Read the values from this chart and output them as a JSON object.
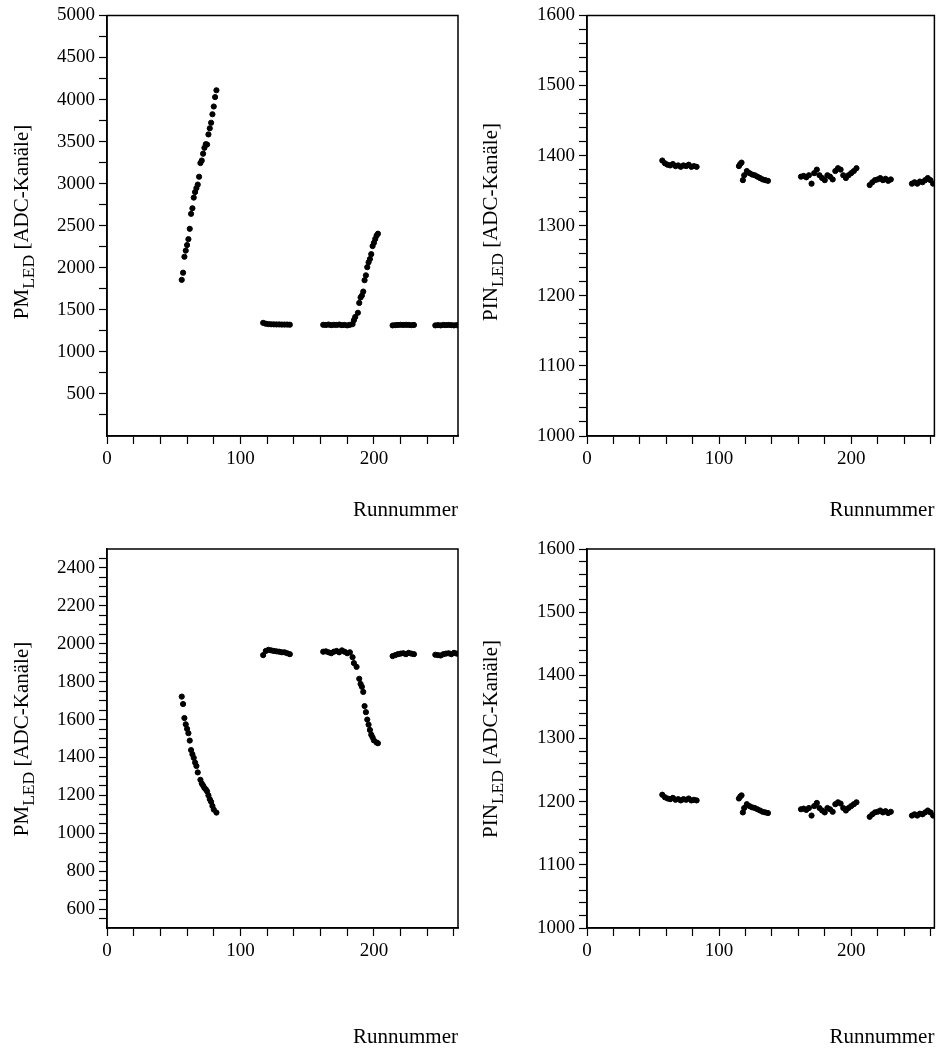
{
  "chart_data": [
    {
      "type": "scatter",
      "xlabel": "Runnummer",
      "ylabel": "PM$_{LED}$ [ADC-Kanäle]",
      "marker": "circle",
      "xlim": [
        0,
        263
      ],
      "ylim": [
        0,
        5000
      ],
      "xticks": [
        0,
        {
          "value": 20,
          "label": null
        },
        {
          "value": 40,
          "label": null
        },
        {
          "value": 60,
          "label": null
        },
        {
          "value": 80,
          "label": null
        },
        100,
        {
          "value": 120,
          "label": null
        },
        {
          "value": 140,
          "label": null
        },
        {
          "value": 160,
          "label": null
        },
        {
          "value": 180,
          "label": null
        },
        200,
        {
          "value": 220,
          "label": null
        },
        {
          "value": 240,
          "label": null
        },
        {
          "value": 260,
          "label": null
        }
      ],
      "yticks": [
        {
          "value": 250,
          "label": null
        },
        500,
        {
          "value": 750,
          "label": null
        },
        1000,
        {
          "value": 1250,
          "label": null
        },
        1500,
        {
          "value": 1750,
          "label": null
        },
        2000,
        {
          "value": 2250,
          "label": null
        },
        2500,
        {
          "value": 2750,
          "label": null
        },
        3000,
        {
          "value": 3250,
          "label": null
        },
        3500,
        {
          "value": 3750,
          "label": null
        },
        4000,
        {
          "value": 4250,
          "label": null
        },
        4500,
        {
          "value": 4750,
          "label": null
        },
        5000
      ],
      "series": [
        {
          "color": "#000000",
          "x": [
            56,
            57,
            58,
            59,
            60,
            61,
            62,
            63,
            64,
            65,
            66,
            67,
            68,
            69,
            70,
            71,
            72,
            73,
            74,
            75,
            76,
            77,
            78,
            79,
            80,
            81,
            82,
            117,
            119,
            121,
            123,
            125,
            127,
            129,
            131,
            133,
            135,
            137,
            162,
            164,
            166,
            168,
            170,
            172,
            174,
            176,
            178,
            180,
            182,
            184,
            185,
            186,
            188,
            189,
            190,
            191,
            192,
            193,
            194,
            195,
            196,
            197,
            198,
            199,
            200,
            201,
            202,
            203,
            214,
            216,
            218,
            220,
            222,
            224,
            226,
            228,
            230,
            246,
            248,
            250,
            252,
            254,
            256,
            258,
            260,
            262
          ],
          "values": [
            1856,
            1941,
            2131,
            2204,
            2270,
            2340,
            2463,
            2641,
            2707,
            2834,
            2900,
            2947,
            2989,
            3082,
            3245,
            3275,
            3356,
            3426,
            3469,
            3465,
            3585,
            3658,
            3724,
            3825,
            3917,
            4029,
            4110,
            1345,
            1335,
            1330,
            1328,
            1327,
            1326,
            1326,
            1325,
            1325,
            1325,
            1323,
            1322,
            1320,
            1325,
            1318,
            1322,
            1320,
            1325,
            1318,
            1320,
            1315,
            1322,
            1330,
            1377,
            1415,
            1465,
            1582,
            1647,
            1670,
            1717,
            1852,
            1910,
            2007,
            2065,
            2104,
            2162,
            2258,
            2297,
            2343,
            2382,
            2405,
            1315,
            1318,
            1320,
            1322,
            1320,
            1322,
            1320,
            1318,
            1320,
            1315,
            1318,
            1315,
            1320,
            1318,
            1320,
            1318,
            1315,
            1318
          ]
        }
      ]
    },
    {
      "type": "scatter",
      "xlabel": "Runnummer",
      "ylabel": "PIN$_{LED}$ [ADC-Kanäle]",
      "marker": "circle",
      "xlim": [
        0,
        263
      ],
      "ylim": [
        1000,
        1600
      ],
      "xticks": [
        0,
        {
          "value": 20,
          "label": null
        },
        {
          "value": 40,
          "label": null
        },
        {
          "value": 60,
          "label": null
        },
        {
          "value": 80,
          "label": null
        },
        100,
        {
          "value": 120,
          "label": null
        },
        {
          "value": 140,
          "label": null
        },
        {
          "value": 160,
          "label": null
        },
        {
          "value": 180,
          "label": null
        },
        200,
        {
          "value": 220,
          "label": null
        },
        {
          "value": 240,
          "label": null
        },
        {
          "value": 260,
          "label": null
        }
      ],
      "yticks": [
        1000,
        {
          "value": 1020,
          "label": null
        },
        {
          "value": 1040,
          "label": null
        },
        {
          "value": 1060,
          "label": null
        },
        {
          "value": 1080,
          "label": null
        },
        1100,
        {
          "value": 1120,
          "label": null
        },
        {
          "value": 1140,
          "label": null
        },
        {
          "value": 1160,
          "label": null
        },
        {
          "value": 1180,
          "label": null
        },
        1200,
        {
          "value": 1220,
          "label": null
        },
        {
          "value": 1240,
          "label": null
        },
        {
          "value": 1260,
          "label": null
        },
        {
          "value": 1280,
          "label": null
        },
        1300,
        {
          "value": 1320,
          "label": null
        },
        {
          "value": 1340,
          "label": null
        },
        {
          "value": 1360,
          "label": null
        },
        {
          "value": 1380,
          "label": null
        },
        1400,
        {
          "value": 1420,
          "label": null
        },
        {
          "value": 1440,
          "label": null
        },
        {
          "value": 1460,
          "label": null
        },
        {
          "value": 1480,
          "label": null
        },
        1500,
        {
          "value": 1520,
          "label": null
        },
        {
          "value": 1540,
          "label": null
        },
        {
          "value": 1560,
          "label": null
        },
        {
          "value": 1580,
          "label": null
        },
        1600
      ],
      "series": [
        {
          "color": "#000000",
          "x": [
            57,
            59,
            61,
            63,
            65,
            67,
            69,
            71,
            73,
            75,
            77,
            79,
            81,
            83,
            115,
            116,
            117,
            118,
            119,
            121,
            123,
            125,
            127,
            129,
            131,
            133,
            135,
            137,
            162,
            164,
            166,
            168,
            170,
            172,
            174,
            176,
            178,
            180,
            182,
            184,
            186,
            188,
            190,
            192,
            194,
            196,
            198,
            200,
            202,
            204,
            214,
            216,
            218,
            220,
            222,
            224,
            226,
            228,
            230,
            246,
            248,
            250,
            252,
            254,
            256,
            258,
            260,
            262
          ],
          "values": [
            1393,
            1389,
            1387,
            1386,
            1388,
            1385,
            1386,
            1384,
            1386,
            1385,
            1387,
            1384,
            1385,
            1384,
            1385,
            1388,
            1390,
            1365,
            1372,
            1378,
            1375,
            1373,
            1372,
            1370,
            1368,
            1366,
            1365,
            1364,
            1370,
            1371,
            1369,
            1372,
            1360,
            1375,
            1380,
            1372,
            1368,
            1365,
            1372,
            1370,
            1366,
            1378,
            1382,
            1380,
            1372,
            1368,
            1372,
            1375,
            1378,
            1382,
            1358,
            1362,
            1365,
            1366,
            1368,
            1365,
            1367,
            1364,
            1366,
            1360,
            1362,
            1360,
            1363,
            1362,
            1365,
            1368,
            1365,
            1360
          ]
        }
      ]
    },
    {
      "type": "scatter",
      "xlabel": "Runnummer",
      "ylabel": "PM$_{LED}$ [ADC-Kanäle]",
      "marker": "circle",
      "xlim": [
        0,
        263
      ],
      "ylim": [
        500,
        2500
      ],
      "xticks": [
        0,
        {
          "value": 20,
          "label": null
        },
        {
          "value": 40,
          "label": null
        },
        {
          "value": 60,
          "label": null
        },
        {
          "value": 80,
          "label": null
        },
        100,
        {
          "value": 120,
          "label": null
        },
        {
          "value": 140,
          "label": null
        },
        {
          "value": 160,
          "label": null
        },
        {
          "value": 180,
          "label": null
        },
        200,
        {
          "value": 220,
          "label": null
        },
        {
          "value": 240,
          "label": null
        },
        {
          "value": 260,
          "label": null
        }
      ],
      "yticks": [
        {
          "value": 550,
          "label": null
        },
        600,
        {
          "value": 650,
          "label": null
        },
        {
          "value": 700,
          "label": null
        },
        {
          "value": 750,
          "label": null
        },
        800,
        {
          "value": 850,
          "label": null
        },
        {
          "value": 900,
          "label": null
        },
        {
          "value": 950,
          "label": null
        },
        1000,
        {
          "value": 1050,
          "label": null
        },
        {
          "value": 1100,
          "label": null
        },
        {
          "value": 1150,
          "label": null
        },
        1200,
        {
          "value": 1250,
          "label": null
        },
        {
          "value": 1300,
          "label": null
        },
        {
          "value": 1350,
          "label": null
        },
        1400,
        {
          "value": 1450,
          "label": null
        },
        {
          "value": 1500,
          "label": null
        },
        {
          "value": 1550,
          "label": null
        },
        1600,
        {
          "value": 1650,
          "label": null
        },
        {
          "value": 1700,
          "label": null
        },
        {
          "value": 1750,
          "label": null
        },
        1800,
        {
          "value": 1850,
          "label": null
        },
        {
          "value": 1900,
          "label": null
        },
        {
          "value": 1950,
          "label": null
        },
        2000,
        {
          "value": 2050,
          "label": null
        },
        {
          "value": 2100,
          "label": null
        },
        {
          "value": 2150,
          "label": null
        },
        2200,
        {
          "value": 2250,
          "label": null
        },
        {
          "value": 2300,
          "label": null
        },
        {
          "value": 2350,
          "label": null
        },
        2400,
        {
          "value": 2450,
          "label": null
        }
      ],
      "series": [
        {
          "color": "#000000",
          "x": [
            56,
            57,
            58,
            59,
            60,
            61,
            62,
            63,
            64,
            65,
            66,
            67,
            68,
            70,
            71,
            72,
            73,
            74,
            75,
            76,
            77,
            78,
            79,
            80,
            82,
            117,
            119,
            121,
            123,
            125,
            127,
            129,
            131,
            133,
            135,
            137,
            162,
            164,
            166,
            168,
            170,
            172,
            174,
            176,
            178,
            180,
            182,
            184,
            185,
            187,
            189,
            190,
            191,
            192,
            193,
            194,
            195,
            196,
            197,
            198,
            199,
            200,
            202,
            203,
            214,
            216,
            218,
            220,
            222,
            224,
            226,
            228,
            230,
            246,
            248,
            250,
            252,
            254,
            256,
            258,
            260,
            262
          ],
          "values": [
            1721,
            1682,
            1608,
            1575,
            1551,
            1528,
            1489,
            1439,
            1417,
            1398,
            1373,
            1355,
            1321,
            1282,
            1263,
            1252,
            1239,
            1232,
            1221,
            1200,
            1180,
            1166,
            1144,
            1125,
            1109,
            1940,
            1962,
            1968,
            1965,
            1962,
            1960,
            1958,
            1955,
            1955,
            1950,
            1945,
            1958,
            1960,
            1955,
            1950,
            1958,
            1962,
            1955,
            1965,
            1958,
            1950,
            1955,
            1929,
            1898,
            1878,
            1815,
            1788,
            1773,
            1746,
            1671,
            1639,
            1600,
            1573,
            1545,
            1520,
            1506,
            1490,
            1479,
            1475,
            1935,
            1940,
            1945,
            1948,
            1950,
            1945,
            1952,
            1948,
            1945,
            1942,
            1940,
            1938,
            1945,
            1948,
            1950,
            1945,
            1952,
            1948
          ]
        }
      ]
    },
    {
      "type": "scatter",
      "xlabel": "Runnummer",
      "ylabel": "PIN$_{LED}$ [ADC-Kanäle]",
      "marker": "circle",
      "xlim": [
        0,
        263
      ],
      "ylim": [
        1000,
        1600
      ],
      "xticks": [
        0,
        {
          "value": 20,
          "label": null
        },
        {
          "value": 40,
          "label": null
        },
        {
          "value": 60,
          "label": null
        },
        {
          "value": 80,
          "label": null
        },
        100,
        {
          "value": 120,
          "label": null
        },
        {
          "value": 140,
          "label": null
        },
        {
          "value": 160,
          "label": null
        },
        {
          "value": 180,
          "label": null
        },
        200,
        {
          "value": 220,
          "label": null
        },
        {
          "value": 240,
          "label": null
        },
        {
          "value": 260,
          "label": null
        }
      ],
      "yticks": [
        1000,
        {
          "value": 1020,
          "label": null
        },
        {
          "value": 1040,
          "label": null
        },
        {
          "value": 1060,
          "label": null
        },
        {
          "value": 1080,
          "label": null
        },
        1100,
        {
          "value": 1120,
          "label": null
        },
        {
          "value": 1140,
          "label": null
        },
        {
          "value": 1160,
          "label": null
        },
        {
          "value": 1180,
          "label": null
        },
        1200,
        {
          "value": 1220,
          "label": null
        },
        {
          "value": 1240,
          "label": null
        },
        {
          "value": 1260,
          "label": null
        },
        {
          "value": 1280,
          "label": null
        },
        1300,
        {
          "value": 1320,
          "label": null
        },
        {
          "value": 1340,
          "label": null
        },
        {
          "value": 1360,
          "label": null
        },
        {
          "value": 1380,
          "label": null
        },
        1400,
        {
          "value": 1420,
          "label": null
        },
        {
          "value": 1440,
          "label": null
        },
        {
          "value": 1460,
          "label": null
        },
        {
          "value": 1480,
          "label": null
        },
        1500,
        {
          "value": 1520,
          "label": null
        },
        {
          "value": 1540,
          "label": null
        },
        {
          "value": 1560,
          "label": null
        },
        {
          "value": 1580,
          "label": null
        },
        1600
      ],
      "series": [
        {
          "color": "#000000",
          "x": [
            57,
            59,
            61,
            63,
            65,
            67,
            69,
            71,
            73,
            75,
            77,
            79,
            81,
            83,
            115,
            116,
            117,
            118,
            119,
            121,
            123,
            125,
            127,
            129,
            131,
            133,
            135,
            137,
            162,
            164,
            166,
            168,
            170,
            172,
            174,
            176,
            178,
            180,
            182,
            184,
            186,
            188,
            190,
            192,
            194,
            196,
            198,
            200,
            202,
            204,
            214,
            216,
            218,
            220,
            222,
            224,
            226,
            228,
            230,
            246,
            248,
            250,
            252,
            254,
            256,
            258,
            260,
            262
          ],
          "values": [
            1211,
            1207,
            1205,
            1204,
            1206,
            1203,
            1204,
            1202,
            1204,
            1203,
            1205,
            1202,
            1203,
            1202,
            1205,
            1208,
            1210,
            1183,
            1190,
            1196,
            1193,
            1191,
            1190,
            1188,
            1186,
            1184,
            1183,
            1182,
            1188,
            1189,
            1187,
            1190,
            1178,
            1193,
            1198,
            1190,
            1186,
            1183,
            1190,
            1188,
            1184,
            1196,
            1199,
            1197,
            1190,
            1186,
            1190,
            1193,
            1196,
            1199,
            1176,
            1180,
            1183,
            1184,
            1186,
            1183,
            1185,
            1182,
            1184,
            1178,
            1180,
            1178,
            1181,
            1180,
            1183,
            1186,
            1183,
            1178
          ]
        }
      ]
    }
  ]
}
